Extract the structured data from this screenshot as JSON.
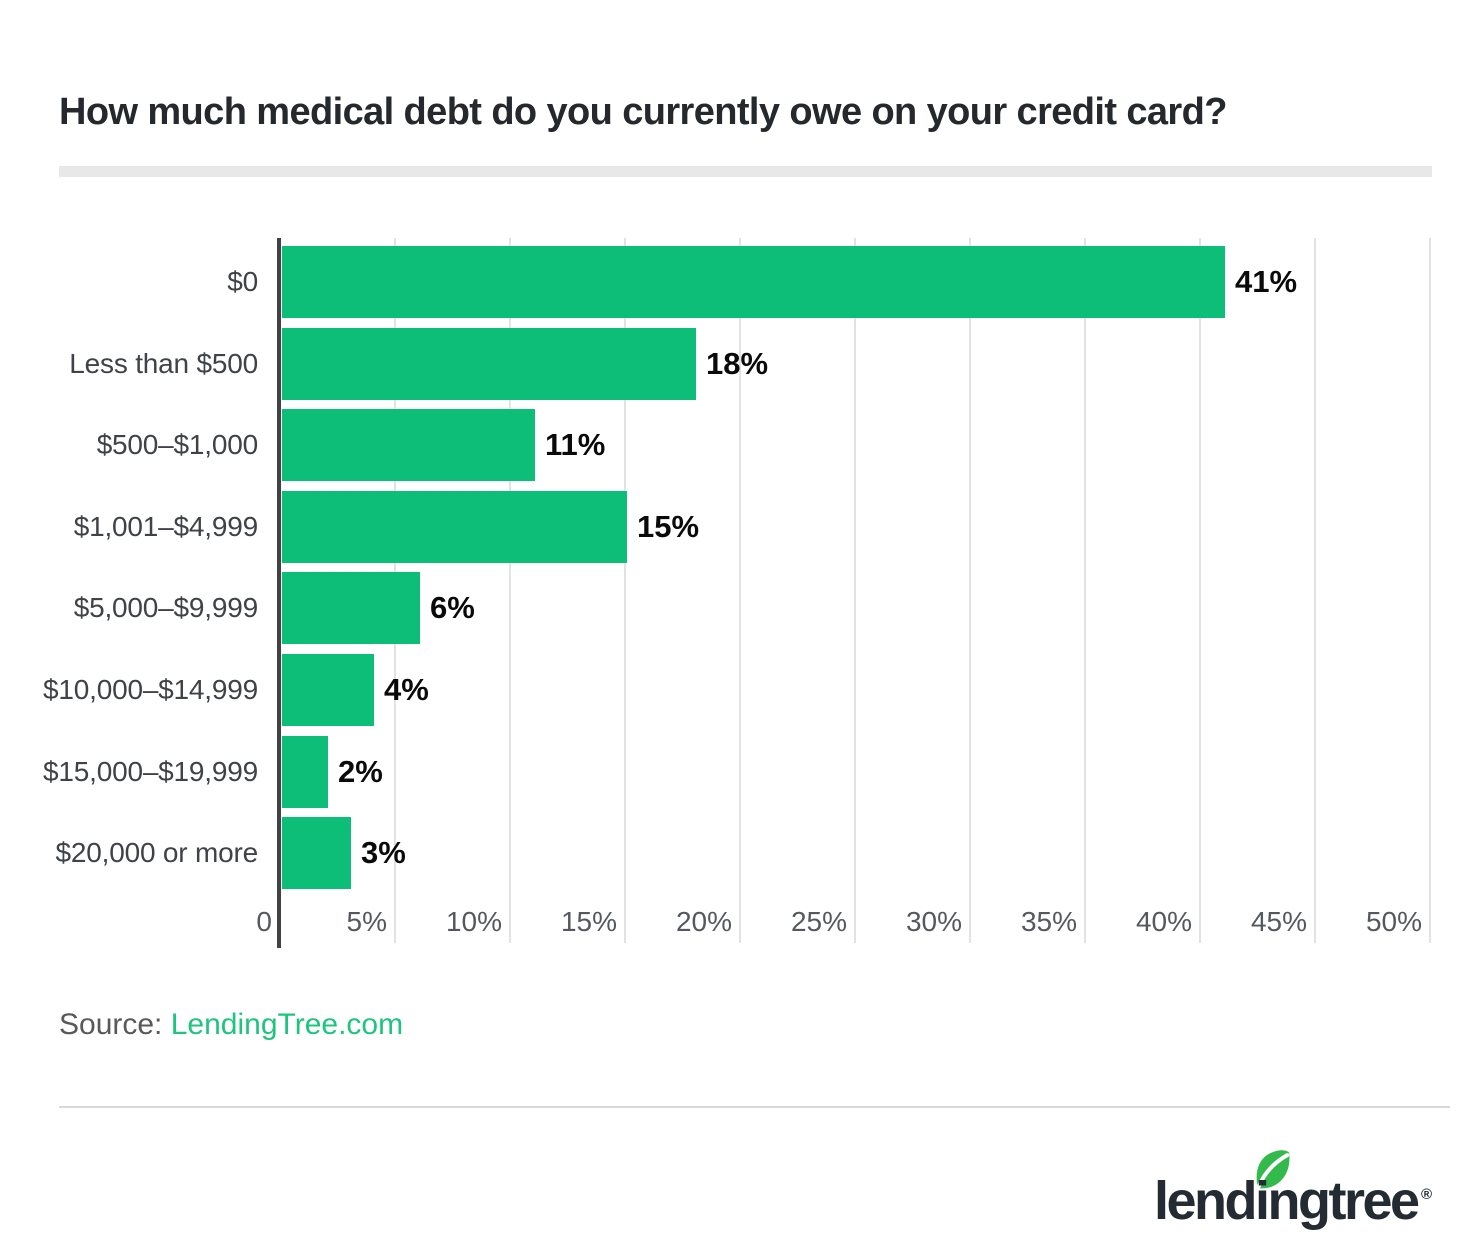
{
  "page": {
    "title": "How much medical debt do you currently owe on your credit card?"
  },
  "chart_data": {
    "type": "bar",
    "orientation": "horizontal",
    "title": "How much medical debt do you currently owe on your credit card?",
    "categories": [
      "$0",
      "Less than $500",
      "$500–$1,000",
      "$1,001–$4,999",
      "$5,000–$9,999",
      "$10,000–$14,999",
      "$15,000–$19,999",
      "$20,000 or more"
    ],
    "values": [
      41,
      18,
      11,
      15,
      6,
      4,
      2,
      3
    ],
    "value_labels": [
      "41%",
      "18%",
      "11%",
      "15%",
      "6%",
      "4%",
      "2%",
      "3%"
    ],
    "xlabel": "",
    "ylabel": "",
    "xlim": [
      0,
      50
    ],
    "grid": "vertical-only",
    "legend": "none",
    "bar_color": "#0dbe79",
    "x_axis": {
      "ticks": [
        {
          "v": 0,
          "label": "0"
        },
        {
          "v": 5,
          "label": "5%"
        },
        {
          "v": 10,
          "label": "10%"
        },
        {
          "v": 15,
          "label": "15%"
        },
        {
          "v": 20,
          "label": "20%"
        },
        {
          "v": 25,
          "label": "25%"
        },
        {
          "v": 30,
          "label": "30%"
        },
        {
          "v": 35,
          "label": "35%"
        },
        {
          "v": 40,
          "label": "40%"
        },
        {
          "v": 45,
          "label": "45%"
        },
        {
          "v": 50,
          "label": "50%"
        }
      ]
    }
  },
  "source": {
    "prefix": "Source:",
    "link_text": "LendingTree.com"
  },
  "logo": {
    "wordmark": "lendingtree",
    "registered": "®",
    "icon": "leaf-icon"
  },
  "colors": {
    "bar_green": "#0dbe79",
    "link_green": "#1fc47e",
    "leaf_green": "#33b94c",
    "logo_text": "#242b33",
    "title_text": "#25282c",
    "grid_line": "#e2e2e2",
    "axis_line": "#424242",
    "category_text": "#3f4347",
    "tick_text": "#55595e",
    "value_text": "#0a0a0a",
    "source_text": "#58595b",
    "strip": "#e8e8e8",
    "divider": "#d8d8d8"
  }
}
